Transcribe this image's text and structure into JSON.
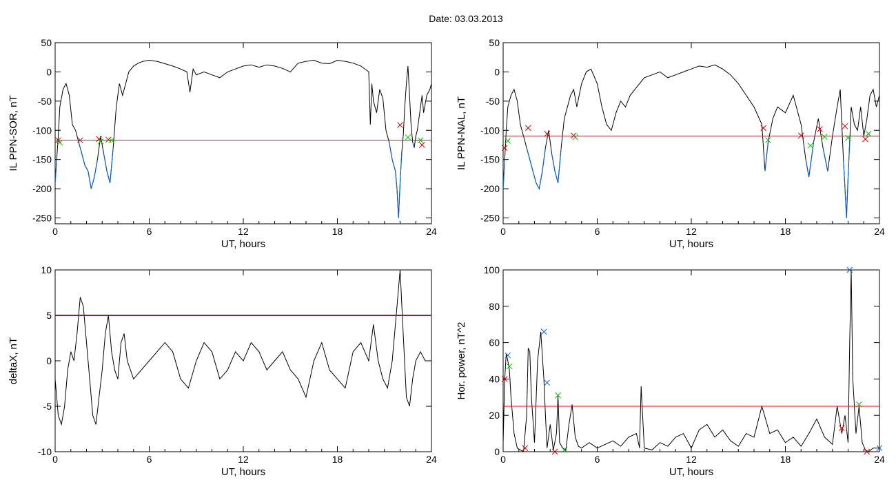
{
  "title": "Date:  03.03.2013",
  "colors": {
    "trace": "#000000",
    "threshold": "#ff0000",
    "event": "#0b5fd6",
    "cross_red": "#d60000",
    "cross_green": "#00c000",
    "cross_blue": "#1060e0",
    "threshold_purple": "#5a2a8a"
  },
  "chart_data": [
    {
      "type": "line",
      "ylabel": "IL PPN-SOR, nT",
      "xlabel": "UT, hours",
      "xlim": [
        0,
        24
      ],
      "ylim": [
        -260,
        50
      ],
      "xticks": [
        0,
        6,
        12,
        18,
        24
      ],
      "yticks": [
        50,
        0,
        -50,
        -100,
        -150,
        -200,
        -250
      ],
      "series": [
        {
          "x": [
            0,
            0.1,
            0.2,
            0.3,
            0.5,
            0.7,
            0.9,
            1.1,
            1.3,
            1.5,
            1.7,
            1.9,
            2.1,
            2.3,
            2.5,
            2.7,
            2.9,
            3.1,
            3.3,
            3.5,
            3.7,
            3.9,
            4.1,
            4.3,
            4.5,
            4.7,
            5.0,
            5.3,
            5.6,
            6.0,
            6.5,
            7.0,
            7.5,
            8.0,
            8.4,
            8.6,
            8.8,
            9.0,
            9.5,
            10.0,
            10.5,
            11.0,
            11.5,
            12.0,
            12.5,
            13.0,
            13.5,
            14.0,
            14.5,
            15.0,
            15.5,
            16.0,
            16.5,
            17.0,
            17.5,
            18.0,
            18.5,
            19.0,
            19.5,
            20.0,
            20.1,
            20.2,
            20.3,
            20.5,
            20.7,
            20.9,
            21.1,
            21.3,
            21.5,
            21.7,
            21.8,
            21.9,
            22.0,
            22.1,
            22.2,
            22.3,
            22.4,
            22.5,
            22.6,
            22.7,
            22.8,
            22.9,
            23.0,
            23.1,
            23.2,
            23.3,
            23.4,
            23.5,
            23.7,
            23.9,
            24.0
          ],
          "y": [
            -190,
            -150,
            -110,
            -60,
            -30,
            -20,
            -40,
            -90,
            -100,
            -120,
            -140,
            -160,
            -170,
            -200,
            -180,
            -150,
            -110,
            -140,
            -170,
            -190,
            -130,
            -60,
            -20,
            -40,
            -20,
            0,
            10,
            15,
            18,
            20,
            18,
            14,
            10,
            5,
            0,
            -35,
            5,
            -5,
            0,
            -5,
            -10,
            0,
            5,
            10,
            12,
            8,
            12,
            10,
            6,
            0,
            15,
            18,
            20,
            15,
            14,
            20,
            18,
            15,
            10,
            0,
            -90,
            -20,
            -50,
            -70,
            -30,
            -45,
            -100,
            -120,
            -150,
            -170,
            -200,
            -250,
            -190,
            -140,
            -110,
            -60,
            -20,
            10,
            -40,
            -90,
            -120,
            -130,
            -110,
            -100,
            -80,
            -60,
            -40,
            -70,
            -40,
            -30,
            -20
          ],
          "color": "#000000"
        }
      ],
      "threshold": -117,
      "markers_red": [
        [
          0.2,
          -117
        ],
        [
          1.6,
          -117
        ],
        [
          2.8,
          -115
        ],
        [
          3.4,
          -116
        ],
        [
          22.0,
          -91
        ],
        [
          23.4,
          -125
        ]
      ],
      "markers_green": [
        [
          0.3,
          -121
        ],
        [
          2.9,
          -119
        ],
        [
          3.6,
          -117
        ],
        [
          22.5,
          -112
        ],
        [
          23.3,
          -117
        ]
      ]
    },
    {
      "type": "line",
      "ylabel": "IL PPN-NAL, nT",
      "xlabel": "UT, hours",
      "xlim": [
        0,
        24
      ],
      "ylim": [
        -260,
        50
      ],
      "xticks": [
        0,
        6,
        12,
        18,
        24
      ],
      "yticks": [
        50,
        0,
        -50,
        -100,
        -150,
        -200,
        -250
      ],
      "series": [
        {
          "x": [
            0,
            0.1,
            0.2,
            0.3,
            0.5,
            0.7,
            0.9,
            1.1,
            1.3,
            1.5,
            1.7,
            1.9,
            2.1,
            2.3,
            2.5,
            2.7,
            2.9,
            3.1,
            3.3,
            3.5,
            3.7,
            3.9,
            4.1,
            4.3,
            4.5,
            4.7,
            5.0,
            5.3,
            5.6,
            6.0,
            6.3,
            6.6,
            6.9,
            7.2,
            7.5,
            7.8,
            8.1,
            8.4,
            8.7,
            9.0,
            9.5,
            10.0,
            10.5,
            11.0,
            11.5,
            12.0,
            12.5,
            13.0,
            13.5,
            14.0,
            14.5,
            15.0,
            15.5,
            16.0,
            16.5,
            16.7,
            16.9,
            17.2,
            17.5,
            18.0,
            18.5,
            19.0,
            19.3,
            19.5,
            19.8,
            20.1,
            20.4,
            20.7,
            21.0,
            21.3,
            21.5,
            21.7,
            21.8,
            21.9,
            22.0,
            22.1,
            22.2,
            22.4,
            22.6,
            22.8,
            23.0,
            23.2,
            23.4,
            23.6,
            23.8,
            24.0
          ],
          "y": [
            -200,
            -150,
            -100,
            -60,
            -40,
            -30,
            -50,
            -90,
            -110,
            -130,
            -150,
            -170,
            -190,
            -200,
            -170,
            -130,
            -100,
            -140,
            -170,
            -190,
            -130,
            -80,
            -60,
            -40,
            -30,
            -60,
            -20,
            0,
            5,
            -20,
            -60,
            -90,
            -100,
            -70,
            -50,
            -60,
            -40,
            -30,
            -20,
            -10,
            -5,
            0,
            -10,
            -5,
            0,
            5,
            10,
            8,
            12,
            5,
            -5,
            -20,
            -40,
            -60,
            -90,
            -170,
            -120,
            -80,
            -60,
            -70,
            -40,
            -90,
            -150,
            -180,
            -120,
            -80,
            -130,
            -170,
            -110,
            -60,
            -30,
            -150,
            -200,
            -250,
            -180,
            -120,
            -60,
            -90,
            -100,
            -60,
            -110,
            -80,
            -40,
            -30,
            -60,
            -40
          ],
          "color": "#000000"
        }
      ],
      "threshold": -110,
      "markers_red": [
        [
          0.1,
          -130
        ],
        [
          1.6,
          -96
        ],
        [
          2.8,
          -106
        ],
        [
          4.5,
          -109
        ],
        [
          16.6,
          -96
        ],
        [
          19.0,
          -109
        ],
        [
          20.2,
          -98
        ],
        [
          21.8,
          -93
        ],
        [
          23.1,
          -115
        ]
      ],
      "markers_green": [
        [
          0.3,
          -118
        ],
        [
          4.6,
          -112
        ],
        [
          16.9,
          -117
        ],
        [
          19.6,
          -126
        ],
        [
          20.5,
          -111
        ],
        [
          22.0,
          -113
        ],
        [
          23.3,
          -106
        ]
      ]
    },
    {
      "type": "line",
      "ylabel": "deltaX, nT",
      "xlabel": "UT, hours",
      "xlim": [
        0,
        24
      ],
      "ylim": [
        -10,
        10
      ],
      "xticks": [
        0,
        6,
        12,
        18,
        24
      ],
      "yticks": [
        10,
        5,
        0,
        -5,
        -10
      ],
      "series": [
        {
          "x": [
            0,
            0.2,
            0.4,
            0.6,
            0.8,
            1.0,
            1.2,
            1.4,
            1.6,
            1.8,
            2.0,
            2.2,
            2.4,
            2.6,
            2.8,
            3.0,
            3.2,
            3.4,
            3.6,
            3.8,
            4.0,
            4.2,
            4.4,
            4.6,
            4.8,
            5.0,
            5.5,
            6.0,
            6.5,
            7.0,
            7.5,
            8.0,
            8.5,
            9.0,
            9.5,
            10.0,
            10.5,
            11.0,
            11.5,
            12.0,
            12.5,
            13.0,
            13.5,
            14.0,
            14.5,
            15.0,
            15.5,
            16.0,
            16.5,
            17.0,
            17.5,
            18.0,
            18.5,
            19.0,
            19.5,
            20.0,
            20.3,
            20.6,
            20.9,
            21.2,
            21.5,
            21.8,
            22.0,
            22.2,
            22.4,
            22.6,
            22.8,
            23.0,
            23.3,
            23.6,
            24.0
          ],
          "y": [
            -2,
            -6,
            -7,
            -5,
            -1,
            1,
            0,
            3,
            7,
            6,
            2,
            -2,
            -6,
            -7,
            -4,
            -1,
            3,
            5,
            1,
            -1,
            -2,
            2,
            3,
            0,
            -1,
            -2,
            -1,
            0,
            1,
            2,
            1,
            -2,
            -3,
            0,
            2,
            1,
            -2,
            -1,
            1,
            0,
            2,
            1,
            -1,
            0,
            1,
            -1,
            -2,
            -4,
            0,
            2,
            -1,
            -2,
            -3,
            1,
            2,
            0,
            4,
            0,
            -2,
            -3,
            0,
            6,
            10,
            3,
            -4,
            -5,
            -2,
            0,
            1,
            0,
            0
          ],
          "color": "#000000"
        }
      ],
      "threshold": 5
    },
    {
      "type": "line",
      "ylabel": "Hor. power, nT^2",
      "xlabel": "UT, hours",
      "xlim": [
        0,
        24
      ],
      "ylim": [
        0,
        100
      ],
      "xticks": [
        0,
        6,
        12,
        18,
        24
      ],
      "yticks": [
        100,
        80,
        60,
        40,
        20,
        0
      ],
      "series": [
        {
          "x": [
            0,
            0.1,
            0.2,
            0.3,
            0.4,
            0.5,
            0.7,
            0.9,
            1.1,
            1.3,
            1.5,
            1.6,
            1.7,
            1.8,
            2.0,
            2.2,
            2.4,
            2.6,
            2.7,
            2.8,
            3.0,
            3.2,
            3.4,
            3.5,
            3.6,
            3.8,
            4.0,
            4.2,
            4.4,
            4.6,
            4.8,
            5.0,
            5.5,
            6.0,
            6.5,
            7.0,
            7.5,
            8.0,
            8.5,
            8.7,
            8.8,
            9.0,
            9.5,
            10.0,
            10.5,
            11.0,
            11.5,
            12.0,
            12.5,
            13.0,
            13.5,
            14.0,
            14.5,
            15.0,
            15.5,
            16.0,
            16.5,
            17.0,
            17.5,
            18.0,
            18.5,
            19.0,
            19.5,
            20.0,
            20.5,
            21.0,
            21.3,
            21.6,
            21.8,
            22.0,
            22.1,
            22.2,
            22.3,
            22.5,
            22.7,
            22.9,
            23.1,
            23.3,
            23.6,
            24.0
          ],
          "y": [
            5,
            40,
            54,
            50,
            45,
            30,
            10,
            2,
            1,
            0,
            20,
            57,
            55,
            30,
            5,
            50,
            66,
            40,
            20,
            2,
            15,
            1,
            10,
            31,
            5,
            2,
            1,
            15,
            26,
            8,
            3,
            2,
            5,
            2,
            4,
            6,
            3,
            8,
            10,
            2,
            36,
            2,
            1,
            5,
            3,
            8,
            10,
            2,
            12,
            15,
            8,
            12,
            6,
            3,
            10,
            8,
            25,
            10,
            12,
            5,
            8,
            3,
            10,
            18,
            8,
            4,
            25,
            10,
            20,
            5,
            60,
            100,
            40,
            10,
            25,
            5,
            1,
            0,
            2,
            2
          ],
          "color": "#000000"
        }
      ],
      "threshold": 25,
      "markers_red": [
        [
          0.1,
          40
        ],
        [
          1.4,
          2
        ],
        [
          3.3,
          0
        ],
        [
          21.6,
          13
        ],
        [
          23.2,
          0
        ]
      ],
      "markers_green": [
        [
          0.4,
          47
        ],
        [
          3.5,
          31
        ],
        [
          3.9,
          1
        ],
        [
          22.7,
          26
        ]
      ],
      "markers_blue": [
        [
          0.3,
          53
        ],
        [
          2.6,
          66
        ],
        [
          2.8,
          38
        ],
        [
          22.1,
          100
        ],
        [
          24.0,
          2
        ]
      ]
    }
  ]
}
